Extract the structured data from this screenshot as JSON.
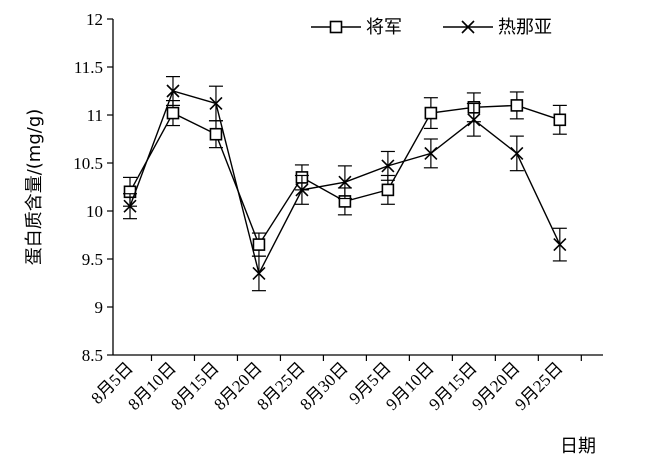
{
  "chart_data": {
    "type": "line",
    "title": "",
    "xlabel": "日期",
    "ylabel": "蛋白质含量/(mg/g)",
    "ylim": [
      8.5,
      12
    ],
    "yticks": [
      "8.5",
      "9",
      "9.5",
      "10",
      "10.5",
      "11",
      "11.5",
      "12"
    ],
    "categories": [
      "8月5日",
      "8月10日",
      "8月15日",
      "8月20日",
      "8月25日",
      "8月30日",
      "9月5日",
      "9月10日",
      "9月15日",
      "9月20日",
      "9月25日"
    ],
    "grid": false,
    "legend": "top-right",
    "series": [
      {
        "name": "将军",
        "marker": "square",
        "values": [
          10.2,
          11.02,
          10.8,
          9.65,
          10.35,
          10.1,
          10.22,
          11.02,
          11.08,
          11.1,
          10.95
        ],
        "errors": [
          0.15,
          0.13,
          0.14,
          0.12,
          0.13,
          0.14,
          0.15,
          0.16,
          0.15,
          0.14,
          0.15
        ]
      },
      {
        "name": "热那亚",
        "marker": "cross",
        "values": [
          10.05,
          11.25,
          11.12,
          9.35,
          10.22,
          10.3,
          10.47,
          10.6,
          10.95,
          10.6,
          9.65
        ],
        "errors": [
          0.13,
          0.15,
          0.18,
          0.18,
          0.15,
          0.17,
          0.15,
          0.15,
          0.17,
          0.18,
          0.17
        ]
      }
    ]
  }
}
